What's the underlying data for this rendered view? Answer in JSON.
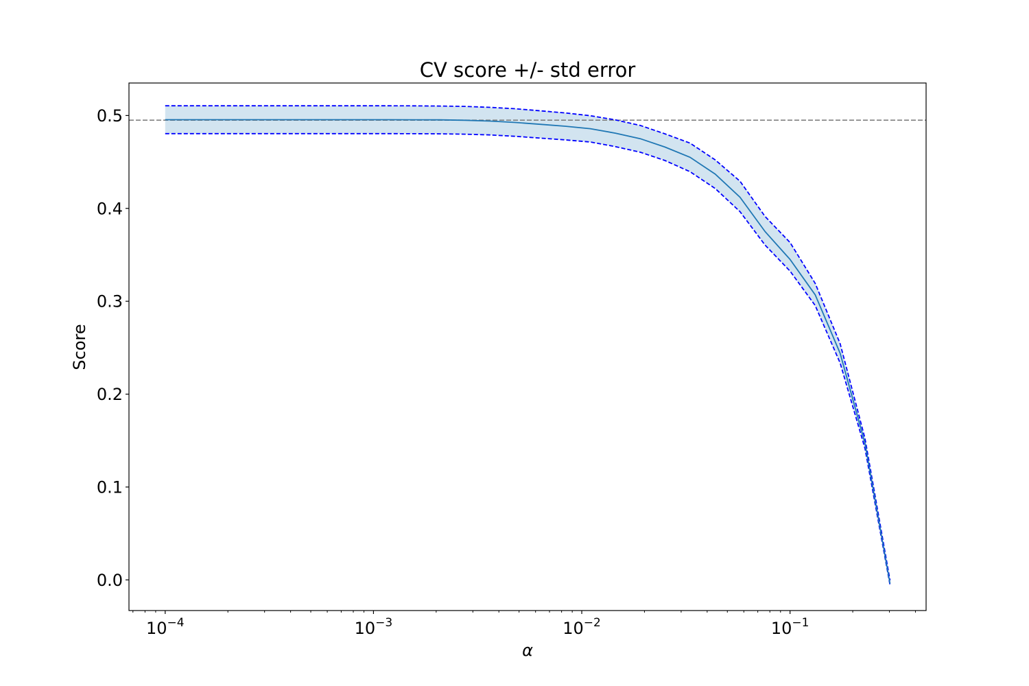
{
  "chart_data": {
    "type": "line",
    "title": "CV score +/- std error",
    "xlabel": "α",
    "ylabel": "Score",
    "xscale": "log",
    "xlim": [
      6.7e-05,
      0.45
    ],
    "ylim": [
      -0.033,
      0.535
    ],
    "grid": false,
    "y_ticks": [
      "0.0",
      "0.1",
      "0.2",
      "0.3",
      "0.4",
      "0.5"
    ],
    "x_ticks": [
      {
        "base": "10",
        "exp": "−4"
      },
      {
        "base": "10",
        "exp": "−3"
      },
      {
        "base": "10",
        "exp": "−2"
      },
      {
        "base": "10",
        "exp": "−1"
      }
    ],
    "reference_line": {
      "y": 0.495,
      "style": "dashed",
      "color": "#808080"
    },
    "colors": {
      "mean": "#1f77b4",
      "band": "#1f77b4",
      "band_bounds": "#0000ff"
    },
    "series": [
      {
        "x": [
          0.0001,
          0.000132,
          0.000174,
          0.000229,
          0.000302,
          0.000398,
          0.000525,
          0.000692,
          0.000912,
          0.0012,
          0.00158,
          0.00209,
          0.00275,
          0.00363,
          0.00479,
          0.00631,
          0.00832,
          0.011,
          0.0145,
          0.0191,
          0.0251,
          0.0331,
          0.0437,
          0.0575,
          0.0759,
          0.1,
          0.132,
          0.174,
          0.229,
          0.302
        ],
        "mean": [
          0.4955,
          0.4955,
          0.4955,
          0.4955,
          0.4955,
          0.4955,
          0.4955,
          0.4955,
          0.4955,
          0.4955,
          0.4954,
          0.4953,
          0.4949,
          0.494,
          0.4925,
          0.4905,
          0.4885,
          0.4858,
          0.481,
          0.475,
          0.466,
          0.455,
          0.437,
          0.412,
          0.375,
          0.345,
          0.307,
          0.244,
          0.147,
          -0.004
        ],
        "upper": [
          0.5105,
          0.5105,
          0.5105,
          0.5105,
          0.5105,
          0.5105,
          0.5105,
          0.5105,
          0.5105,
          0.5105,
          0.5104,
          0.5102,
          0.5098,
          0.5088,
          0.5073,
          0.5051,
          0.5028,
          0.4998,
          0.4953,
          0.4893,
          0.4803,
          0.4703,
          0.4523,
          0.4293,
          0.3913,
          0.3633,
          0.3193,
          0.2543,
          0.1523,
          -0.0005
        ],
        "lower": [
          0.4805,
          0.4805,
          0.4805,
          0.4805,
          0.4805,
          0.4805,
          0.4805,
          0.4805,
          0.4805,
          0.4805,
          0.4804,
          0.4803,
          0.4799,
          0.4791,
          0.4776,
          0.4757,
          0.4738,
          0.4715,
          0.4665,
          0.4605,
          0.4515,
          0.4395,
          0.4215,
          0.3965,
          0.3605,
          0.3325,
          0.2955,
          0.2335,
          0.1415,
          -0.0055
        ]
      }
    ]
  }
}
